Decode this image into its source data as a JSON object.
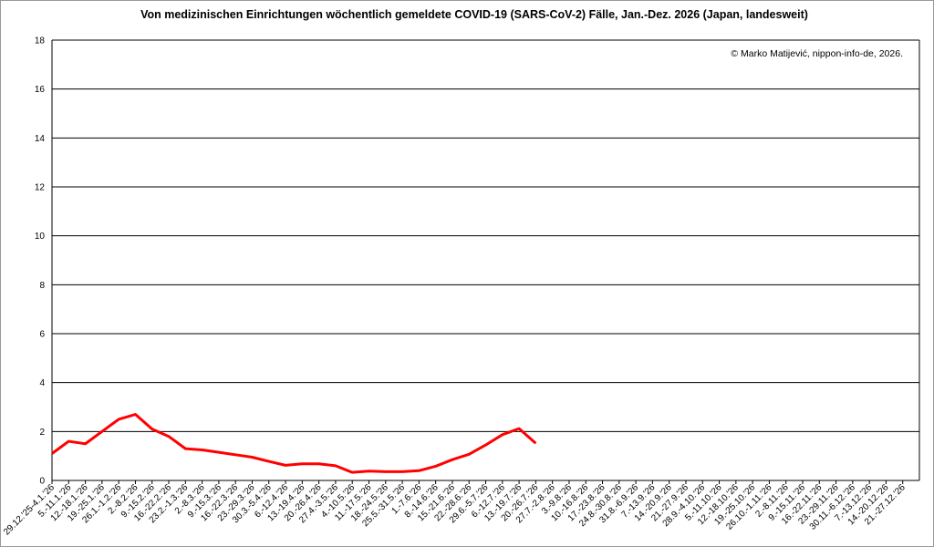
{
  "chart_data": {
    "type": "line",
    "title": "Von medizinischen Einrichtungen wöchentlich gemeldete COVID-19 (SARS-CoV-2) Fälle, Jan.-Dez. 2026 (Japan, landesweit)",
    "annotation": "© Marko Matijević, nippon-info-de, 2026.",
    "categories": [
      "29.12.'25-4.1.'26",
      "5.-11.1.'26",
      "12.-18.1.'26",
      "19.-25.1.'26",
      "26.1.-1.2.'26",
      "2.-8.2.'26",
      "9.-15.2.'26",
      "16.-22.2.'26",
      "23.2.-1.3.'26",
      "2.-8.3.'26",
      "9.-15.3.'26",
      "16.-22.3.'26",
      "23.-29.3.'26",
      "30.3.-5.4.'26",
      "6.-12.4.'26",
      "13.-19.4.'26",
      "20.-26.4.'26",
      "27.4.-3.5.'26",
      "4.-10.5.'26",
      "11.-17.5.'26",
      "18.-24.5.'26",
      "25.5.-31.5.'26",
      "1.-7.6.'26",
      "8.-14.6.'26",
      "15.-21.6.'26",
      "22.-28.6.'26",
      "29.6.-5.7.'26",
      "6.-12.7.'26",
      "13.-19.7.'26",
      "20.-26.7.'26",
      "27.7.-2.8.'26",
      "3.-9.8.'26",
      "10.-16.8.'26",
      "17.-23.8.'26",
      "24.8.-30.8.'26",
      "31.8.-6.9.'26",
      "7.-13.9.'26",
      "14.-20.9.'26",
      "21.-27.9.'26",
      "28.9.-4.10.'26",
      "5.-11.10.'26",
      "12.-18.10.'26",
      "19.-25.10.'26",
      "26.10.-1.11.'26",
      "2.-8.11.'26",
      "9.-15.11.'26",
      "16.-22.11.'26",
      "23.-29.11.'26",
      "30.11.-6.12.'26",
      "7.-13.12.'26",
      "14.-20.12.'26",
      "21.-27.12.'26"
    ],
    "values": [
      1.1,
      1.6,
      1.5,
      2.0,
      2.5,
      2.7,
      2.1,
      1.8,
      1.3,
      1.25,
      1.15,
      1.05,
      0.95,
      0.78,
      0.62,
      0.68,
      0.68,
      0.6,
      0.33,
      0.38,
      0.36,
      0.36,
      0.4,
      0.58,
      0.85,
      1.07,
      1.45,
      1.87,
      2.12,
      1.52,
      null,
      null,
      null,
      null,
      null,
      null,
      null,
      null,
      null,
      null,
      null,
      null,
      null,
      null,
      null,
      null,
      null,
      null,
      null,
      null,
      null,
      null
    ],
    "color": "#ff0000",
    "ylim": [
      0,
      18
    ],
    "yticks": [
      0,
      2,
      4,
      6,
      8,
      10,
      12,
      14,
      16,
      18
    ],
    "grid": true
  }
}
